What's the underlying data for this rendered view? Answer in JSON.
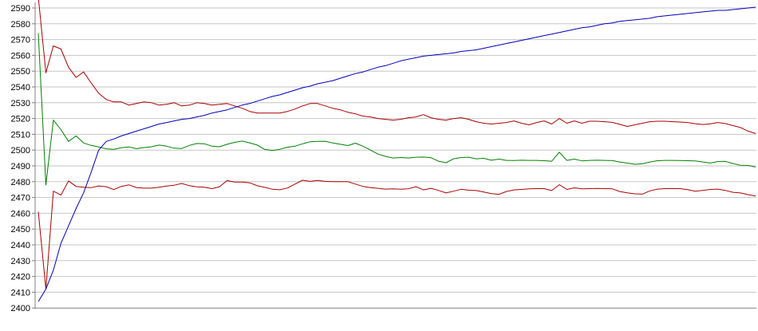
{
  "chart_data": {
    "type": "line",
    "title": "",
    "xlabel": "",
    "ylabel": "",
    "legend": "none",
    "grid": true,
    "background_color": "#ffffff",
    "gridline_color": "#c6c6c6",
    "axis_color": "#808080",
    "label_color": "#000000",
    "y_axis": {
      "min": 2400,
      "max": 2590,
      "step": 10,
      "tick_labels": [
        "2590",
        "2580",
        "2570",
        "2560",
        "2550",
        "2540",
        "2530",
        "2520",
        "2510",
        "2500",
        "2490",
        "2480",
        "2470",
        "2460",
        "2450",
        "2440",
        "2430",
        "2420",
        "2410",
        "2400"
      ]
    },
    "x_axis": {
      "labels_visible": false,
      "n_points": 96
    },
    "series": [
      {
        "name": "red-upper-bound",
        "color": "#aa0000",
        "values": [
          2597,
          2549,
          2566,
          2564,
          2552.5,
          2546,
          2549.5,
          2542.5,
          2536,
          2532,
          2530.5,
          2530.5,
          2528.5,
          2529.5,
          2530.5,
          2530,
          2528.5,
          2529,
          2530,
          2528,
          2528.5,
          2530,
          2529.5,
          2528.5,
          2529,
          2529.5,
          2528,
          2526.5,
          2524.5,
          2523.5,
          2523.5,
          2523.5,
          2523.5,
          2524.5,
          2526,
          2528,
          2529.5,
          2529.5,
          2528,
          2526.5,
          2525.5,
          2524,
          2523,
          2521.5,
          2521,
          2520,
          2519.5,
          2519,
          2519.5,
          2520.5,
          2521,
          2522.5,
          2520.5,
          2519.5,
          2519,
          2520,
          2520.5,
          2519.5,
          2518,
          2517,
          2516.5,
          2517,
          2517.5,
          2518.5,
          2517,
          2516,
          2517.5,
          2518.5,
          2516.5,
          2520,
          2517,
          2518.5,
          2517,
          2518.3,
          2518.3,
          2518,
          2517.6,
          2516.3,
          2515,
          2516,
          2517,
          2518,
          2518.3,
          2518.3,
          2518,
          2517.8,
          2517.5,
          2516.7,
          2516.2,
          2516.6,
          2517.5,
          2516.8,
          2515.5,
          2514.3,
          2512,
          2510.5
        ]
      },
      {
        "name": "red-lower-bound",
        "color": "#aa0000",
        "values": [
          2461,
          2412,
          2474,
          2471.5,
          2480.5,
          2477,
          2476.5,
          2476.2,
          2477.3,
          2476.8,
          2475,
          2477,
          2478,
          2476.3,
          2475.9,
          2475.9,
          2476.5,
          2477.2,
          2477.8,
          2478.9,
          2477.5,
          2476.7,
          2476.5,
          2475.6,
          2476.8,
          2480.7,
          2479.8,
          2479.8,
          2479.3,
          2477.4,
          2476.4,
          2475.2,
          2474.9,
          2476,
          2478.5,
          2480.9,
          2480.2,
          2480.8,
          2480.2,
          2480,
          2480,
          2480,
          2478.5,
          2477,
          2476.2,
          2475.8,
          2475.3,
          2475.5,
          2475.2,
          2475.5,
          2476.8,
          2474.8,
          2475.8,
          2474.5,
          2472.9,
          2474,
          2475.2,
          2474.6,
          2474.4,
          2473.5,
          2472.5,
          2472,
          2473.8,
          2474.8,
          2475.1,
          2475.5,
          2475.6,
          2475.6,
          2474.4,
          2478.1,
          2475.1,
          2476.1,
          2475.5,
          2475.6,
          2475.7,
          2475.6,
          2475.5,
          2473.8,
          2473,
          2472.3,
          2472.1,
          2474.2,
          2475.3,
          2475.6,
          2475.6,
          2475.6,
          2475,
          2474,
          2474.5,
          2475.1,
          2475.3,
          2474.5,
          2473.3,
          2472.9,
          2471.8,
          2470.9
        ]
      },
      {
        "name": "green-mean",
        "color": "#008000",
        "values": [
          2574,
          2478,
          2519,
          2513,
          2505.5,
          2509,
          2504.5,
          2503,
          2502,
          2500.8,
          2500.5,
          2501.5,
          2502,
          2500.9,
          2501.6,
          2502.1,
          2503.2,
          2502.5,
          2501.2,
          2501,
          2503,
          2504.2,
          2504,
          2502.5,
          2502.1,
          2503.7,
          2504.9,
          2505.7,
          2504.6,
          2503.2,
          2500.4,
          2499.8,
          2500.5,
          2501.8,
          2502.5,
          2504,
          2505.3,
          2505.5,
          2505.6,
          2504.5,
          2503.7,
          2502.9,
          2504.4,
          2502.5,
          2500,
          2497.5,
          2496,
          2495,
          2495.3,
          2495,
          2495.5,
          2495.6,
          2495.2,
          2493,
          2492,
          2494.5,
          2495.3,
          2495.5,
          2494.5,
          2494.8,
          2493.6,
          2494.3,
          2493.5,
          2493.4,
          2493.6,
          2493.5,
          2493.5,
          2493.3,
          2493,
          2498.7,
          2493.5,
          2494.3,
          2493.2,
          2493.5,
          2493.6,
          2493.5,
          2493.4,
          2492.5,
          2491.8,
          2491,
          2491.3,
          2492.5,
          2493.3,
          2493.5,
          2493.5,
          2493.4,
          2493.3,
          2493.2,
          2492.5,
          2491.8,
          2492.8,
          2492.9,
          2491.5,
          2490.4,
          2490.3,
          2489.3
        ]
      },
      {
        "name": "blue-cumulative",
        "color": "#0000bb",
        "values": [
          2404,
          2412,
          2424,
          2441,
          2452,
          2463,
          2473,
          2486,
          2500,
          2505.5,
          2507,
          2509,
          2510.5,
          2512,
          2513.5,
          2515,
          2516.5,
          2517.5,
          2518.5,
          2519.5,
          2520,
          2521,
          2522,
          2523.5,
          2524.5,
          2525.5,
          2527,
          2528.5,
          2529.5,
          2531,
          2532.5,
          2534,
          2535,
          2536.5,
          2538,
          2539.5,
          2540.5,
          2542,
          2543,
          2544,
          2545.5,
          2547,
          2548.5,
          2549.5,
          2551,
          2552.5,
          2553.5,
          2555,
          2556.5,
          2557.5,
          2558.5,
          2559.5,
          2560,
          2560.5,
          2561,
          2561.5,
          2562.5,
          2563,
          2563.5,
          2564.5,
          2565.5,
          2566.5,
          2567.5,
          2568.5,
          2569.5,
          2570.5,
          2571.5,
          2572.5,
          2573.5,
          2574.5,
          2575.5,
          2576.5,
          2577.5,
          2578,
          2579,
          2580,
          2580.5,
          2581.5,
          2582,
          2582.5,
          2583,
          2583.5,
          2584.5,
          2585,
          2585.5,
          2586,
          2586.5,
          2587,
          2587.5,
          2588,
          2588.5,
          2588.5,
          2589,
          2589.5,
          2590,
          2590.5
        ]
      }
    ]
  }
}
